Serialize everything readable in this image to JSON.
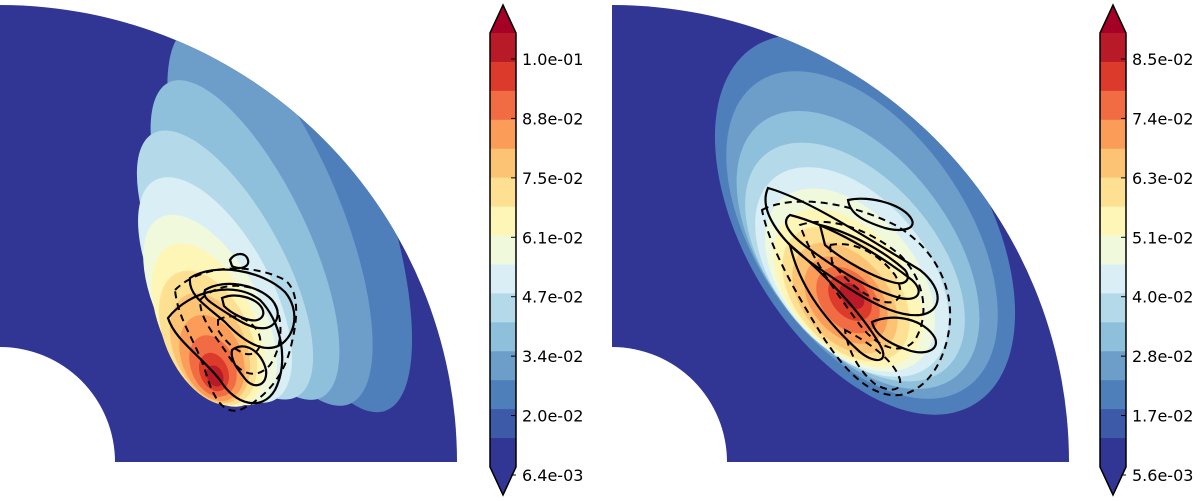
{
  "chart_data": [
    {
      "type": "heatmap",
      "shape": "quarter-annulus contour map with overlaid line contours",
      "colormap": "RdYlBu_r",
      "colormap_colors": [
        "#313695",
        "#3d5aa8",
        "#4f7fbb",
        "#6d9ec9",
        "#8ebfdb",
        "#b4daea",
        "#d9eff5",
        "#f1f9dc",
        "#fef6b7",
        "#fee092",
        "#fdc374",
        "#fb9d59",
        "#f26c43",
        "#dc3b2c",
        "#b81a28"
      ],
      "colorbar": {
        "ticks": [
          "1.0e-01",
          "8.8e-02",
          "7.5e-02",
          "6.1e-02",
          "4.7e-02",
          "3.4e-02",
          "2.0e-02",
          "6.4e-03"
        ],
        "min": 0.0064,
        "max": 0.1,
        "extend": "both",
        "over_color": "#a50026",
        "under_color": "#313695"
      },
      "peak_region": "mid-latitude, middle of shell",
      "contour_lines": "solid (positive) and dashed (negative), black"
    },
    {
      "type": "heatmap",
      "shape": "quarter-annulus contour map with overlaid line contours",
      "colormap": "RdYlBu_r",
      "colormap_colors": [
        "#313695",
        "#3d5aa8",
        "#4f7fbb",
        "#6d9ec9",
        "#8ebfdb",
        "#b4daea",
        "#d9eff5",
        "#f1f9dc",
        "#fef6b7",
        "#fee092",
        "#fdc374",
        "#fb9d59",
        "#f26c43",
        "#dc3b2c",
        "#b81a28"
      ],
      "colorbar": {
        "ticks": [
          "8.5e-02",
          "7.4e-02",
          "6.3e-02",
          "5.1e-02",
          "4.0e-02",
          "2.8e-02",
          "1.7e-02",
          "5.6e-03"
        ],
        "min": 0.0056,
        "max": 0.085,
        "extend": "both",
        "over_color": "#a50026",
        "under_color": "#313695"
      },
      "peak_region": "mid-latitude, middle of shell",
      "contour_lines": "solid (positive) and dashed (negative), black"
    }
  ]
}
